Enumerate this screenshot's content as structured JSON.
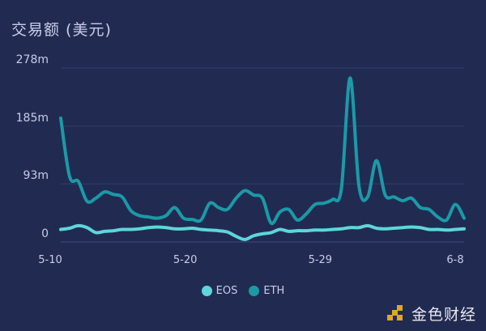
{
  "chart_data": {
    "type": "line",
    "title": "交易额 (美元)",
    "x_ticks": [
      "5-10",
      "5-20",
      "5-29",
      "6-8"
    ],
    "y_ticks": [
      "0",
      "93m",
      "185m",
      "278m"
    ],
    "ylim": [
      0,
      278
    ],
    "y_unit": "m",
    "grid": true,
    "legend_position": "bottom",
    "series": [
      {
        "name": "EOS",
        "color": "#5fd5db",
        "values": [
          20,
          22,
          26,
          23,
          15,
          17,
          18,
          20,
          20,
          21,
          23,
          24,
          23,
          21,
          21,
          22,
          20,
          19,
          18,
          16,
          9,
          4,
          10,
          13,
          15,
          20,
          17,
          18,
          18,
          19,
          19,
          20,
          21,
          23,
          23,
          26,
          22,
          21,
          22,
          23,
          24,
          23,
          20,
          20,
          19,
          20,
          21
        ]
      },
      {
        "name": "ETH",
        "color": "#1b9aa6",
        "values": [
          198,
          105,
          97,
          65,
          70,
          80,
          76,
          72,
          50,
          42,
          40,
          38,
          42,
          55,
          38,
          36,
          35,
          62,
          55,
          52,
          70,
          82,
          75,
          70,
          30,
          48,
          52,
          35,
          45,
          60,
          62,
          68,
          85,
          262,
          90,
          72,
          130,
          75,
          72,
          66,
          70,
          55,
          52,
          40,
          35,
          60,
          38
        ]
      }
    ]
  },
  "brand": {
    "name": "金色财经"
  }
}
